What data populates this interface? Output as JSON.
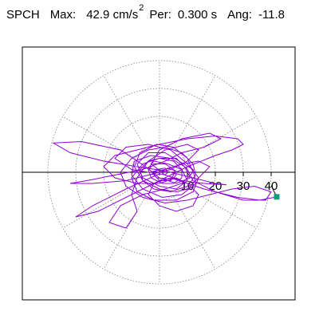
{
  "header": {
    "station": "SPCH",
    "max_label": "Max:",
    "max_value": "42.9 cm/s",
    "max_exp": "2",
    "per_label": "Per:",
    "per_value": "0.300 s",
    "ang_label": "Ang:",
    "ang_value": "-11.8"
  },
  "colors": {
    "trace": "#8f00d8",
    "marker": "#179a7f",
    "grid": "#808080",
    "axis": "#000000",
    "frame": "#000000"
  },
  "chart_data": {
    "type": "polar-particle-motion",
    "units": "cm/s2",
    "radial_ticks": [
      10,
      20,
      30,
      40
    ],
    "radial_tick_labels": [
      "10",
      "20",
      "30",
      "40"
    ],
    "radial_max": 44,
    "angular_spokes_deg": 30,
    "grid": true,
    "max_point": {
      "x": 42.0,
      "y": -8.8
    },
    "trace": [
      [
        0.0,
        0.0
      ],
      [
        3.0,
        1.5
      ],
      [
        6.0,
        0.5
      ],
      [
        4.0,
        -2.5
      ],
      [
        -1.0,
        -2.0
      ],
      [
        -4.0,
        1.5
      ],
      [
        -2.0,
        4.0
      ],
      [
        3.0,
        3.0
      ],
      [
        8.0,
        1.0
      ],
      [
        10.0,
        -3.0
      ],
      [
        6.0,
        -6.0
      ],
      [
        0.0,
        -5.0
      ],
      [
        -6.0,
        -2.0
      ],
      [
        -8.0,
        3.0
      ],
      [
        -4.0,
        7.0
      ],
      [
        2.0,
        7.0
      ],
      [
        7.0,
        4.0
      ],
      [
        12.0,
        1.0
      ],
      [
        13.0,
        -4.0
      ],
      [
        8.0,
        -8.0
      ],
      [
        1.0,
        -9.0
      ],
      [
        -6.0,
        -6.0
      ],
      [
        -10.0,
        -1.0
      ],
      [
        -9.0,
        4.0
      ],
      [
        -3.0,
        6.0
      ],
      [
        4.0,
        5.0
      ],
      [
        9.0,
        2.0
      ],
      [
        11.0,
        -2.0
      ],
      [
        6.0,
        -4.0
      ],
      [
        0.0,
        -2.0
      ],
      [
        -5.0,
        2.0
      ],
      [
        -14.0,
        8.0
      ],
      [
        -28.0,
        11.0
      ],
      [
        -38.0,
        10.5
      ],
      [
        -32.0,
        7.0
      ],
      [
        -20.0,
        4.0
      ],
      [
        -8.0,
        2.0
      ],
      [
        2.0,
        0.5
      ],
      [
        12.0,
        -2.0
      ],
      [
        20.0,
        -4.0
      ],
      [
        24.0,
        -4.5
      ],
      [
        16.0,
        -4.0
      ],
      [
        8.0,
        -3.0
      ],
      [
        2.0,
        -1.0
      ],
      [
        -3.0,
        3.0
      ],
      [
        0.0,
        8.0
      ],
      [
        8.0,
        12.0
      ],
      [
        18.0,
        14.0
      ],
      [
        22.0,
        12.0
      ],
      [
        16.0,
        9.0
      ],
      [
        8.0,
        7.0
      ],
      [
        2.0,
        4.0
      ],
      [
        -6.0,
        1.0
      ],
      [
        -16.0,
        -1.0
      ],
      [
        -26.0,
        -3.0
      ],
      [
        -32.0,
        -4.0
      ],
      [
        -24.0,
        -4.0
      ],
      [
        -12.0,
        -3.0
      ],
      [
        -4.0,
        -1.0
      ],
      [
        4.0,
        1.0
      ],
      [
        10.0,
        4.0
      ],
      [
        14.0,
        8.0
      ],
      [
        10.0,
        10.0
      ],
      [
        2.0,
        8.0
      ],
      [
        -4.0,
        4.0
      ],
      [
        -8.0,
        -2.0
      ],
      [
        -10.0,
        -8.0
      ],
      [
        -8.0,
        -14.0
      ],
      [
        -12.0,
        -20.0
      ],
      [
        -18.0,
        -18.0
      ],
      [
        -14.0,
        -12.0
      ],
      [
        -6.0,
        -8.0
      ],
      [
        2.0,
        -6.0
      ],
      [
        8.0,
        -4.0
      ],
      [
        12.0,
        0.0
      ],
      [
        10.0,
        5.0
      ],
      [
        5.0,
        9.0
      ],
      [
        -1.0,
        10.0
      ],
      [
        -7.0,
        7.0
      ],
      [
        -9.0,
        2.0
      ],
      [
        -6.0,
        -3.0
      ],
      [
        0.0,
        -6.0
      ],
      [
        6.0,
        -7.0
      ],
      [
        10.0,
        -6.0
      ],
      [
        14.0,
        -2.0
      ],
      [
        18.0,
        2.0
      ],
      [
        14.0,
        4.0
      ],
      [
        8.0,
        3.0
      ],
      [
        2.0,
        1.0
      ],
      [
        -4.0,
        0.0
      ],
      [
        -10.0,
        1.0
      ],
      [
        -16.0,
        5.0
      ],
      [
        -12.0,
        9.0
      ],
      [
        -4.0,
        10.0
      ],
      [
        4.0,
        8.0
      ],
      [
        10.0,
        3.0
      ],
      [
        14.0,
        -2.0
      ],
      [
        12.0,
        -7.0
      ],
      [
        6.0,
        -10.0
      ],
      [
        -2.0,
        -10.0
      ],
      [
        -8.0,
        -7.0
      ],
      [
        -10.0,
        -2.0
      ],
      [
        -6.0,
        3.0
      ],
      [
        0.0,
        5.0
      ],
      [
        6.0,
        5.0
      ],
      [
        10.0,
        1.0
      ],
      [
        12.0,
        -3.0
      ],
      [
        20.0,
        -7.0
      ],
      [
        30.0,
        -10.0
      ],
      [
        38.0,
        -10.0
      ],
      [
        40.0,
        -7.0
      ],
      [
        34.0,
        -5.0
      ],
      [
        26.0,
        -6.0
      ],
      [
        18.0,
        -8.0
      ],
      [
        10.0,
        -10.0
      ],
      [
        2.0,
        -11.0
      ],
      [
        -6.0,
        -9.0
      ],
      [
        -12.0,
        -5.0
      ],
      [
        -14.0,
        0.0
      ],
      [
        -10.0,
        5.0
      ],
      [
        -4.0,
        8.0
      ],
      [
        2.0,
        9.0
      ],
      [
        8.0,
        7.0
      ],
      [
        12.0,
        3.0
      ],
      [
        13.0,
        -1.0
      ],
      [
        10.0,
        -5.0
      ],
      [
        4.0,
        -7.0
      ],
      [
        -2.0,
        -6.0
      ],
      [
        -6.0,
        -3.0
      ],
      [
        -7.0,
        1.0
      ],
      [
        -4.0,
        4.0
      ],
      [
        0.0,
        5.0
      ],
      [
        5.0,
        4.0
      ],
      [
        8.0,
        1.0
      ],
      [
        8.0,
        -2.0
      ],
      [
        5.0,
        -4.0
      ],
      [
        1.0,
        -4.0
      ],
      [
        -3.0,
        -2.0
      ],
      [
        -4.0,
        1.0
      ],
      [
        -2.0,
        3.0
      ],
      [
        2.0,
        3.0
      ],
      [
        5.0,
        1.0
      ],
      [
        6.0,
        -1.0
      ],
      [
        4.0,
        -3.0
      ],
      [
        0.0,
        -3.0
      ],
      [
        -2.0,
        -1.0
      ],
      [
        -1.0,
        1.0
      ],
      [
        2.0,
        1.5
      ],
      [
        3.0,
        0.0
      ],
      [
        2.0,
        -1.0
      ],
      [
        0.0,
        -0.5
      ],
      [
        -12.0,
        -6.0
      ],
      [
        -24.0,
        -12.0
      ],
      [
        -30.0,
        -16.0
      ],
      [
        -22.0,
        -14.0
      ],
      [
        -10.0,
        -8.0
      ],
      [
        0.0,
        -3.0
      ],
      [
        10.0,
        2.0
      ],
      [
        20.0,
        6.0
      ],
      [
        26.0,
        8.0
      ],
      [
        30.0,
        10.0
      ],
      [
        28.0,
        12.0
      ],
      [
        20.0,
        13.0
      ],
      [
        10.0,
        12.0
      ],
      [
        0.0,
        10.0
      ],
      [
        -8.0,
        8.0
      ],
      [
        -16.0,
        6.0
      ],
      [
        -20.0,
        2.0
      ],
      [
        -16.0,
        -2.0
      ],
      [
        -8.0,
        -4.0
      ],
      [
        0.0,
        -4.0
      ],
      [
        6.0,
        -2.0
      ],
      [
        10.0,
        -4.0
      ],
      [
        14.0,
        -8.0
      ],
      [
        12.0,
        -12.0
      ],
      [
        6.0,
        -14.0
      ],
      [
        0.0,
        -12.0
      ],
      [
        -4.0,
        -8.0
      ],
      [
        -2.0,
        -4.0
      ],
      [
        4.0,
        -2.0
      ],
      [
        16.0,
        -6.0
      ],
      [
        28.0,
        -9.0
      ],
      [
        36.0,
        -10.0
      ],
      [
        41.0,
        -9.0
      ],
      [
        42.0,
        -8.8
      ]
    ]
  }
}
